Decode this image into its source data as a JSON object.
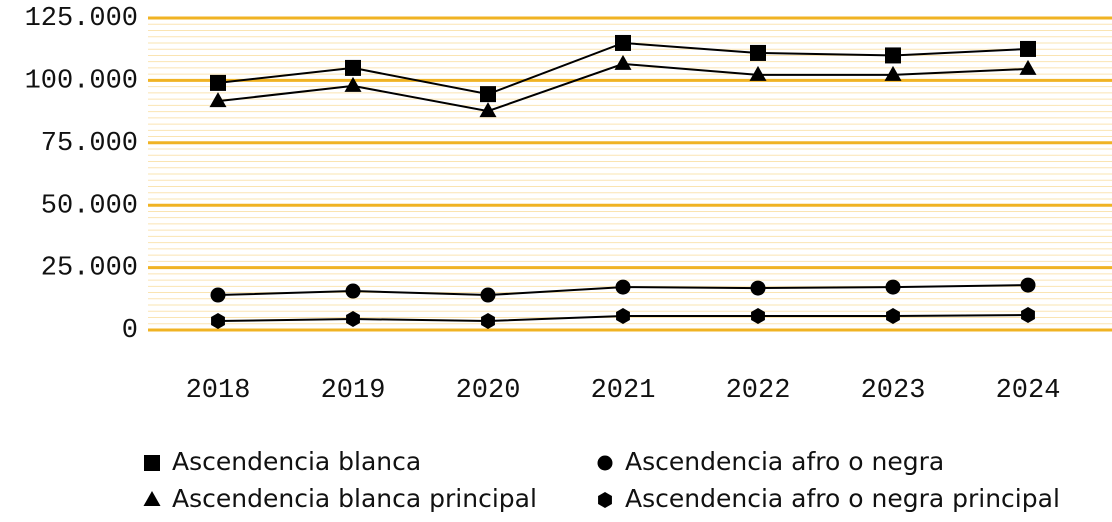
{
  "chart_data": {
    "type": "line",
    "categories": [
      "2018",
      "2019",
      "2020",
      "2021",
      "2022",
      "2023",
      "2024"
    ],
    "series": [
      {
        "name": "Ascendencia blanca",
        "color": "#000000",
        "marker": "square",
        "values": [
          99000,
          105000,
          94500,
          115000,
          111000,
          110000,
          112600
        ]
      },
      {
        "name": "Ascendencia blanca principal",
        "color": "#000000",
        "marker": "triangle",
        "values": [
          91700,
          97800,
          87700,
          106600,
          102200,
          102200,
          104600
        ]
      },
      {
        "name": "Ascendencia afro o negra",
        "color": "#000000",
        "marker": "circle",
        "values": [
          14000,
          15600,
          14000,
          17200,
          16800,
          17200,
          18000
        ]
      },
      {
        "name": "Ascendencia afro o negra principal",
        "color": "#000000",
        "marker": "hexagon",
        "values": [
          3600,
          4400,
          3600,
          5600,
          5600,
          5600,
          6000
        ]
      }
    ],
    "ylim": [
      0,
      125000
    ],
    "yticks": [
      0,
      {
        "value": 25000,
        "label": "25.000"
      },
      {
        "value": 50000,
        "label": "50.000"
      },
      {
        "value": 75000,
        "label": "75.000"
      },
      {
        "value": 100000,
        "label": "100.000"
      },
      {
        "value": 125000,
        "label": "125.000"
      }
    ],
    "grid": true,
    "grid_color": "#f0b323",
    "legend": "bottom"
  }
}
